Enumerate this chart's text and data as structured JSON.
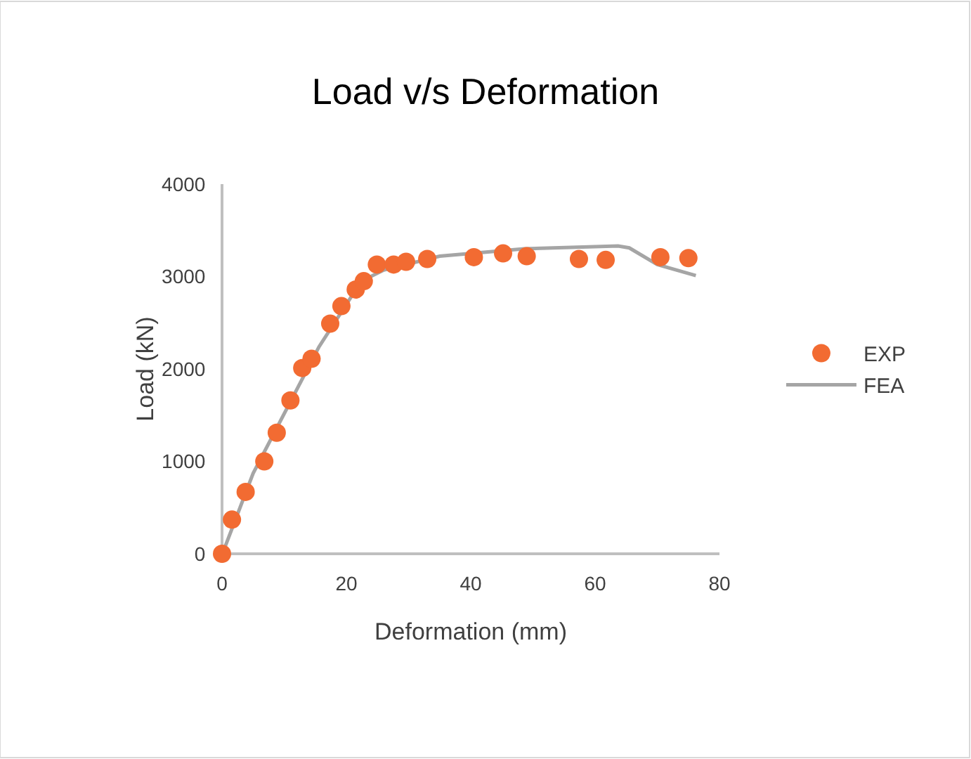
{
  "chart_data": {
    "type": "scatter",
    "title": "Load v/s Deformation",
    "xlabel": "Deformation (mm)",
    "ylabel": "Load (kN)",
    "xlim": [
      0,
      80
    ],
    "xticks": [
      0,
      20,
      40,
      60,
      80
    ],
    "ylim": [
      0,
      4000
    ],
    "yticks": [
      0,
      1000,
      2000,
      3000,
      4000
    ],
    "grid": false,
    "legend": "right",
    "series": [
      {
        "name": "EXP",
        "type": "scatter",
        "marker": "circle",
        "color": "#f26b32",
        "x": [
          0,
          1.6,
          3.8,
          6.8,
          8.8,
          11,
          12.9,
          14.4,
          17.4,
          19.2,
          21.5,
          22.8,
          24.9,
          27.6,
          29.6,
          33,
          40.5,
          45.2,
          49,
          57.4,
          61.7,
          70.5,
          75
        ],
        "values": [
          0,
          370,
          670,
          1000,
          1310,
          1660,
          2010,
          2110,
          2490,
          2680,
          2860,
          2950,
          3130,
          3130,
          3160,
          3190,
          3210,
          3250,
          3220,
          3190,
          3180,
          3210,
          3200
        ]
      },
      {
        "name": "FEA",
        "type": "line",
        "marker": "none",
        "color": "#a5a5a5",
        "x": [
          0,
          0.4,
          5,
          15.6,
          22.4,
          26,
          35,
          48.6,
          63.7,
          65.5,
          70,
          76.2
        ],
        "values": [
          0,
          60,
          870,
          2240,
          2950,
          3070,
          3220,
          3300,
          3330,
          3310,
          3130,
          3010
        ]
      }
    ]
  }
}
